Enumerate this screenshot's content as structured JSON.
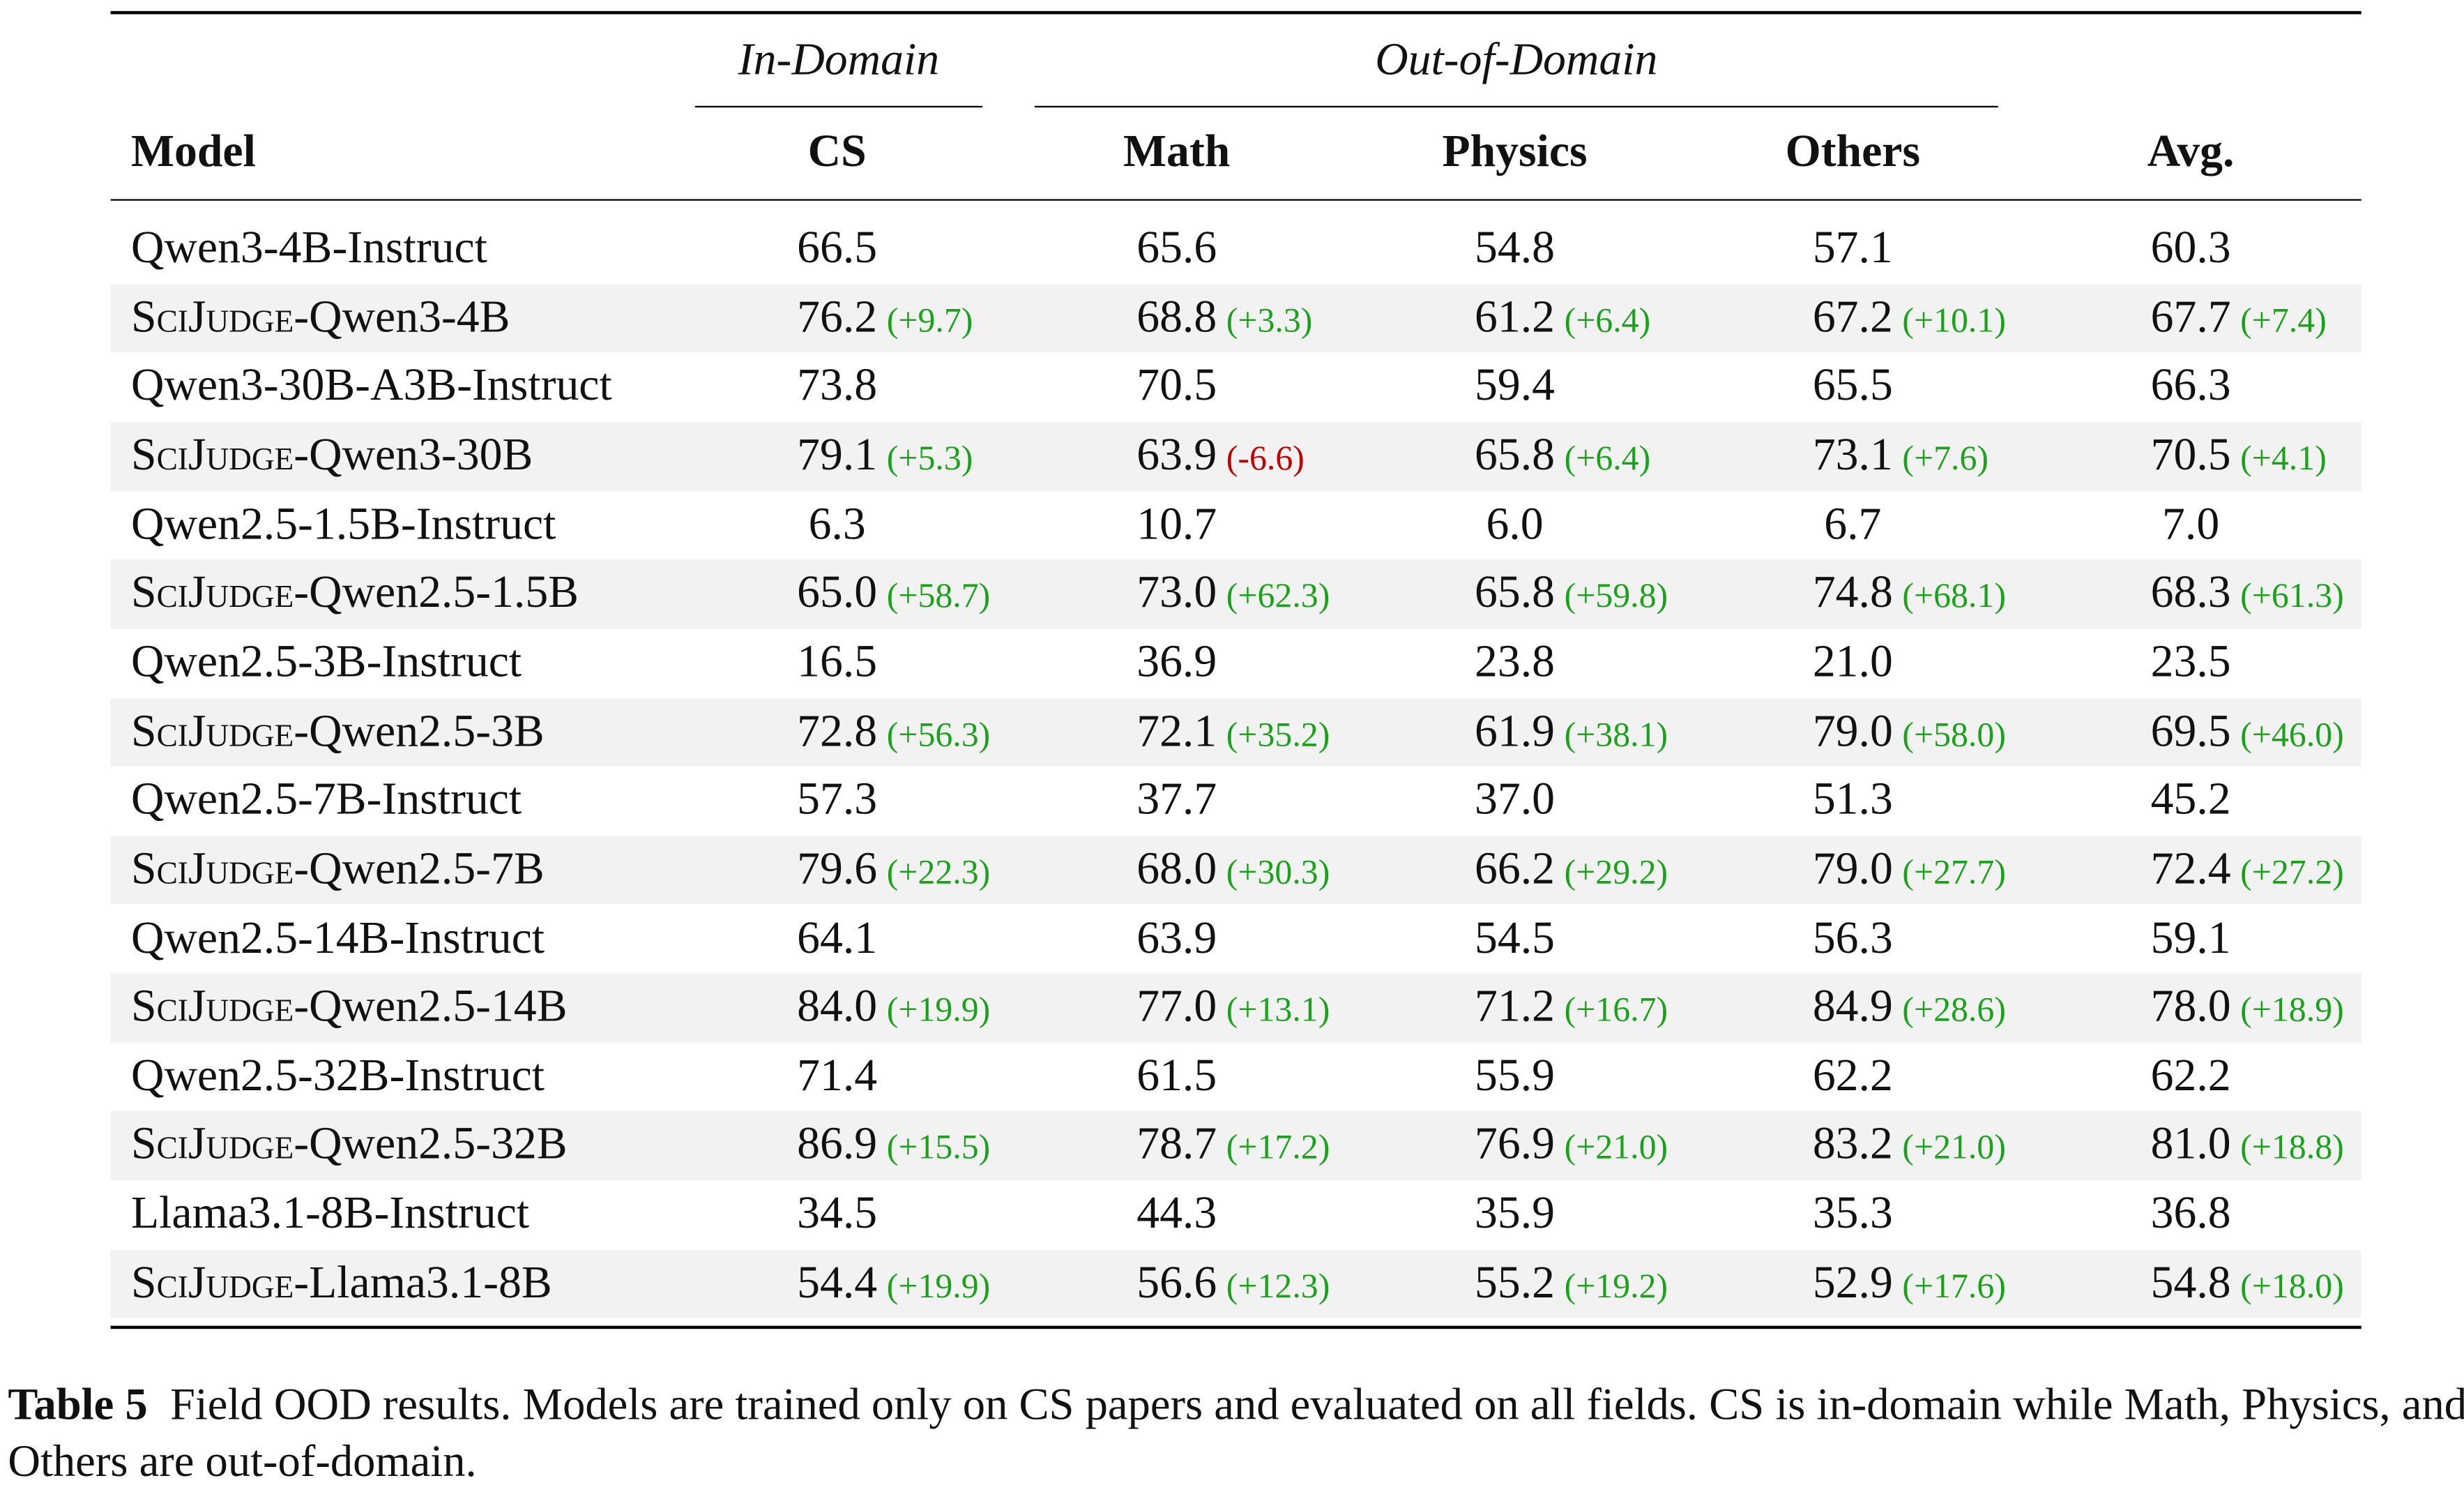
{
  "table": {
    "groups": {
      "in_domain": "In-Domain",
      "out_of_domain": "Out-of-Domain"
    },
    "headers": [
      "Model",
      "CS",
      "Math",
      "Physics",
      "Others",
      "Avg."
    ],
    "colors": {
      "positive": "#1aa31a",
      "negative": "#c00000",
      "shade": "#f2f2f2"
    },
    "rows": [
      {
        "prefix": "",
        "name": "Qwen3-4B-Instruct",
        "shaded": false,
        "values": [
          "66.5",
          "65.6",
          "54.8",
          "57.1",
          "60.3"
        ],
        "deltas": [
          "",
          "",
          "",
          "",
          ""
        ]
      },
      {
        "prefix": "SciJudge",
        "name": "-Qwen3-4B",
        "shaded": true,
        "values": [
          "76.2",
          "68.8",
          "61.2",
          "67.2",
          "67.7"
        ],
        "deltas": [
          "(+9.7)",
          "(+3.3)",
          "(+6.4)",
          "(+10.1)",
          "(+7.4)"
        ]
      },
      {
        "prefix": "",
        "name": "Qwen3-30B-A3B-Instruct",
        "shaded": false,
        "values": [
          "73.8",
          "70.5",
          "59.4",
          "65.5",
          "66.3"
        ],
        "deltas": [
          "",
          "",
          "",
          "",
          ""
        ]
      },
      {
        "prefix": "SciJudge",
        "name": "-Qwen3-30B",
        "shaded": true,
        "values": [
          "79.1",
          "63.9",
          "65.8",
          "73.1",
          "70.5"
        ],
        "deltas": [
          "(+5.3)",
          "(-6.6)",
          "(+6.4)",
          "(+7.6)",
          "(+4.1)"
        ]
      },
      {
        "prefix": "",
        "name": "Qwen2.5-1.5B-Instruct",
        "shaded": false,
        "values": [
          "6.3",
          "10.7",
          "6.0",
          "6.7",
          "7.0"
        ],
        "deltas": [
          "",
          "",
          "",
          "",
          ""
        ]
      },
      {
        "prefix": "SciJudge",
        "name": "-Qwen2.5-1.5B",
        "shaded": true,
        "values": [
          "65.0",
          "73.0",
          "65.8",
          "74.8",
          "68.3"
        ],
        "deltas": [
          "(+58.7)",
          "(+62.3)",
          "(+59.8)",
          "(+68.1)",
          "(+61.3)"
        ]
      },
      {
        "prefix": "",
        "name": "Qwen2.5-3B-Instruct",
        "shaded": false,
        "values": [
          "16.5",
          "36.9",
          "23.8",
          "21.0",
          "23.5"
        ],
        "deltas": [
          "",
          "",
          "",
          "",
          ""
        ]
      },
      {
        "prefix": "SciJudge",
        "name": "-Qwen2.5-3B",
        "shaded": true,
        "values": [
          "72.8",
          "72.1",
          "61.9",
          "79.0",
          "69.5"
        ],
        "deltas": [
          "(+56.3)",
          "(+35.2)",
          "(+38.1)",
          "(+58.0)",
          "(+46.0)"
        ]
      },
      {
        "prefix": "",
        "name": "Qwen2.5-7B-Instruct",
        "shaded": false,
        "values": [
          "57.3",
          "37.7",
          "37.0",
          "51.3",
          "45.2"
        ],
        "deltas": [
          "",
          "",
          "",
          "",
          ""
        ]
      },
      {
        "prefix": "SciJudge",
        "name": "-Qwen2.5-7B",
        "shaded": true,
        "values": [
          "79.6",
          "68.0",
          "66.2",
          "79.0",
          "72.4"
        ],
        "deltas": [
          "(+22.3)",
          "(+30.3)",
          "(+29.2)",
          "(+27.7)",
          "(+27.2)"
        ]
      },
      {
        "prefix": "",
        "name": "Qwen2.5-14B-Instruct",
        "shaded": false,
        "values": [
          "64.1",
          "63.9",
          "54.5",
          "56.3",
          "59.1"
        ],
        "deltas": [
          "",
          "",
          "",
          "",
          ""
        ]
      },
      {
        "prefix": "SciJudge",
        "name": "-Qwen2.5-14B",
        "shaded": true,
        "values": [
          "84.0",
          "77.0",
          "71.2",
          "84.9",
          "78.0"
        ],
        "deltas": [
          "(+19.9)",
          "(+13.1)",
          "(+16.7)",
          "(+28.6)",
          "(+18.9)"
        ]
      },
      {
        "prefix": "",
        "name": "Qwen2.5-32B-Instruct",
        "shaded": false,
        "values": [
          "71.4",
          "61.5",
          "55.9",
          "62.2",
          "62.2"
        ],
        "deltas": [
          "",
          "",
          "",
          "",
          ""
        ]
      },
      {
        "prefix": "SciJudge",
        "name": "-Qwen2.5-32B",
        "shaded": true,
        "values": [
          "86.9",
          "78.7",
          "76.9",
          "83.2",
          "81.0"
        ],
        "deltas": [
          "(+15.5)",
          "(+17.2)",
          "(+21.0)",
          "(+21.0)",
          "(+18.8)"
        ]
      },
      {
        "prefix": "",
        "name": "Llama3.1-8B-Instruct",
        "shaded": false,
        "values": [
          "34.5",
          "44.3",
          "35.9",
          "35.3",
          "36.8"
        ],
        "deltas": [
          "",
          "",
          "",
          "",
          ""
        ]
      },
      {
        "prefix": "SciJudge",
        "name": "-Llama3.1-8B",
        "shaded": true,
        "values": [
          "54.4",
          "56.6",
          "55.2",
          "52.9",
          "54.8"
        ],
        "deltas": [
          "(+19.9)",
          "(+12.3)",
          "(+19.2)",
          "(+17.6)",
          "(+18.0)"
        ]
      }
    ]
  },
  "caption": {
    "label": "Table 5",
    "text": "Field OOD results. Models are trained only on CS papers and evaluated on all fields. CS is in-domain while Math, Physics, and Others are out-of-domain."
  }
}
